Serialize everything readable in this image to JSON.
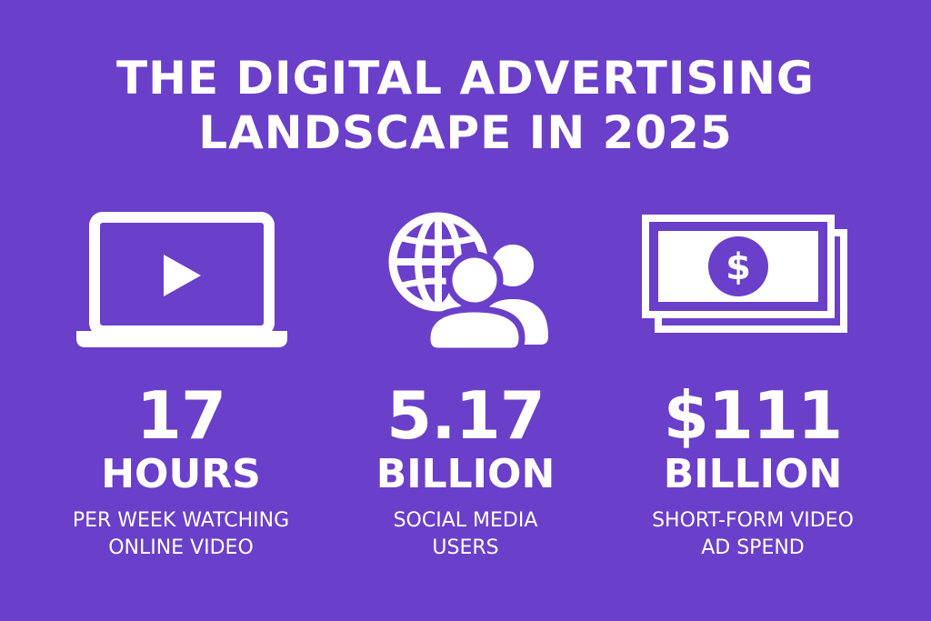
{
  "colors": {
    "background": "#6a3fc9",
    "foreground": "#ffffff"
  },
  "title": {
    "line1": "THE DIGITAL ADVERTISING",
    "line2": "LANDSCAPE IN 2025"
  },
  "stats": [
    {
      "icon": "laptop-play-icon",
      "value": "17",
      "unit": "HOURS",
      "desc_line1": "PER WEEK WATCHING",
      "desc_line2": "ONLINE VIDEO"
    },
    {
      "icon": "globe-users-icon",
      "value": "5.17",
      "unit": "BILLION",
      "desc_line1": "SOCIAL MEDIA",
      "desc_line2": "USERS"
    },
    {
      "icon": "dollar-bills-icon",
      "value": "$111",
      "unit": "BILLION",
      "desc_line1": "SHORT-FORM VIDEO",
      "desc_line2": "AD SPEND"
    }
  ]
}
